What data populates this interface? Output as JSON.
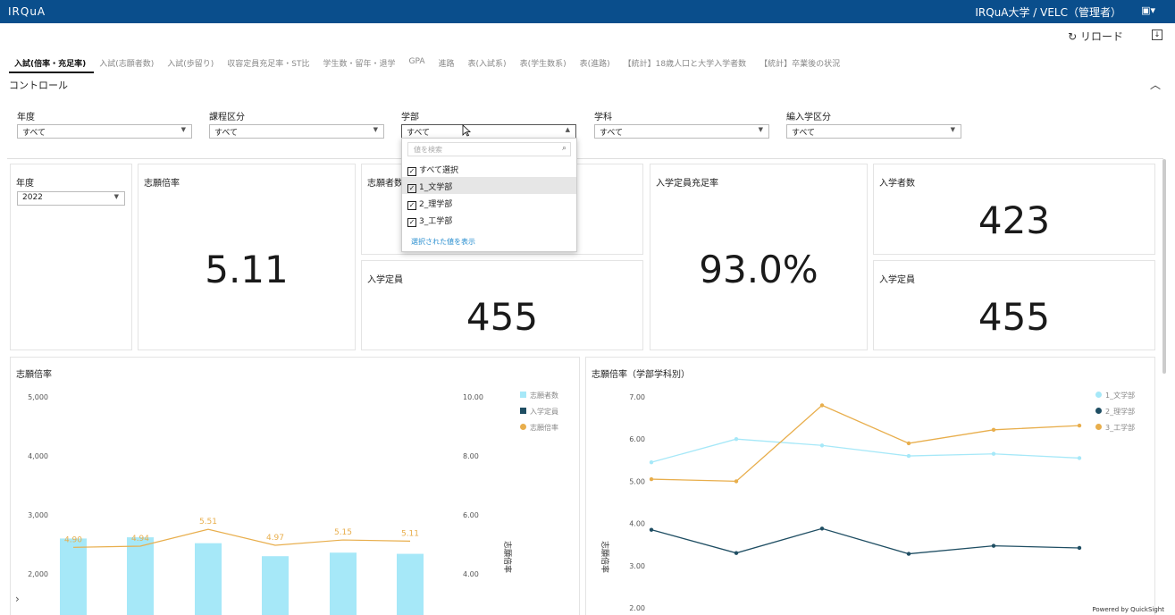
{
  "header": {
    "logo": "IRQuA",
    "org": "IRQuA大学 / VELC（管理者）",
    "account_icon": "id-card-icon"
  },
  "toolbar": {
    "reload_label": "↻ リロード",
    "download_icon": "download-icon"
  },
  "tabs": [
    {
      "label": "入試(倍率・充足率)",
      "active": true
    },
    {
      "label": "入試(志願者数)"
    },
    {
      "label": "入試(歩留り)"
    },
    {
      "label": "収容定員充足率・ST比"
    },
    {
      "label": "学生数・留年・退学"
    },
    {
      "label": "GPA"
    },
    {
      "label": "進路"
    },
    {
      "label": "表(入試系)"
    },
    {
      "label": "表(学生数系)"
    },
    {
      "label": "表(進路)"
    },
    {
      "label": "【統計】18歳人口と大学入学者数"
    },
    {
      "label": "【統計】卒業後の状況"
    }
  ],
  "controls": {
    "title": "コントロール",
    "filters": [
      {
        "label": "年度",
        "value": "すべて"
      },
      {
        "label": "課程区分",
        "value": "すべて"
      },
      {
        "label": "学部",
        "value": "すべて"
      },
      {
        "label": "学科",
        "value": "すべて"
      },
      {
        "label": "編入学区分",
        "value": "すべて"
      }
    ]
  },
  "dropdown": {
    "search_placeholder": "値を検索",
    "options": [
      {
        "label": "すべて選択",
        "checked": true
      },
      {
        "label": "1_文学部",
        "checked": true
      },
      {
        "label": "2_理学部",
        "checked": true
      },
      {
        "label": "3_工学部",
        "checked": true
      }
    ],
    "show_selected": "選択された値を表示"
  },
  "cards": {
    "year": {
      "label": "年度",
      "value": "2022"
    },
    "ratio": {
      "label": "志願倍率",
      "value": "5.11"
    },
    "applicants": {
      "label": "志願者数"
    },
    "capacity1": {
      "label": "入学定員",
      "value": "455"
    },
    "fill_rate": {
      "label": "入学定員充足率",
      "value": "93.0%"
    },
    "enrolled": {
      "label": "入学者数",
      "value": "423"
    },
    "capacity2": {
      "label": "入学定員",
      "value": "455"
    }
  },
  "chart_data": [
    {
      "type": "bar",
      "title": "志願倍率",
      "legend": [
        "志願者数",
        "入学定員",
        "志願倍率"
      ],
      "y_left_ticks": [
        "5,000",
        "4,000",
        "3,000",
        "2,000"
      ],
      "y_right_ticks": [
        "10.00",
        "8.00",
        "6.00",
        "4.00"
      ],
      "y_right_label": "志願倍率",
      "bar_values": [
        2600,
        2620,
        2520,
        2300,
        2360,
        2340
      ],
      "line_values": [
        4.9,
        4.94,
        5.51,
        4.97,
        5.15,
        5.11
      ],
      "line_labels": [
        "4.90",
        "4.94",
        "5.51",
        "4.97",
        "5.15",
        "5.11"
      ],
      "colors": {
        "bar": "#a6e8f8",
        "capacity": "#1f4e63",
        "line": "#e8ae4c"
      }
    },
    {
      "type": "line",
      "title": "志願倍率（学部学科別）",
      "ylabel": "志願倍率",
      "y_ticks": [
        "7.00",
        "6.00",
        "5.00",
        "4.00",
        "3.00",
        "2.00"
      ],
      "series": [
        {
          "name": "1_文学部",
          "color": "#a6e8f8",
          "values": [
            5.45,
            6.0,
            5.85,
            5.6,
            5.65,
            5.55
          ]
        },
        {
          "name": "2_理学部",
          "color": "#1f4e63",
          "values": [
            3.85,
            3.3,
            3.88,
            3.28,
            3.47,
            3.42
          ]
        },
        {
          "name": "3_工学部",
          "color": "#e8ae4c",
          "values": [
            5.05,
            5.0,
            6.8,
            5.9,
            6.22,
            6.32
          ]
        }
      ]
    }
  ],
  "footer": {
    "powered": "Powered by QuickSight"
  }
}
